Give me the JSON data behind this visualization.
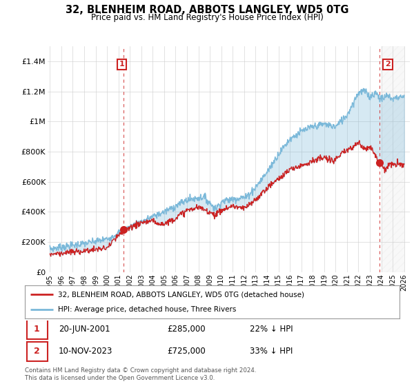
{
  "title": "32, BLENHEIM ROAD, ABBOTS LANGLEY, WD5 0TG",
  "subtitle": "Price paid vs. HM Land Registry's House Price Index (HPI)",
  "legend_line1": "32, BLENHEIM ROAD, ABBOTS LANGLEY, WD5 0TG (detached house)",
  "legend_line2": "HPI: Average price, detached house, Three Rivers",
  "table_rows": [
    {
      "num": "1",
      "date": "20-JUN-2001",
      "price": "£285,000",
      "pct": "22% ↓ HPI"
    },
    {
      "num": "2",
      "date": "10-NOV-2023",
      "price": "£725,000",
      "pct": "33% ↓ HPI"
    }
  ],
  "footer": "Contains HM Land Registry data © Crown copyright and database right 2024.\nThis data is licensed under the Open Government Licence v3.0.",
  "hpi_color": "#7ab8d9",
  "price_color": "#cc2222",
  "dashed_color": "#cc2222",
  "background_color": "#ffffff",
  "grid_color": "#cccccc",
  "ylim": [
    0,
    1500000
  ],
  "yticks": [
    0,
    200000,
    400000,
    600000,
    800000,
    1000000,
    1200000,
    1400000
  ],
  "xlim_start": 1994.8,
  "xlim_end": 2026.5,
  "xticks": [
    1995,
    1996,
    1997,
    1998,
    1999,
    2000,
    2001,
    2002,
    2003,
    2004,
    2005,
    2006,
    2007,
    2008,
    2009,
    2010,
    2011,
    2012,
    2013,
    2014,
    2015,
    2016,
    2017,
    2018,
    2019,
    2020,
    2021,
    2022,
    2023,
    2024,
    2025,
    2026
  ],
  "transaction1_x": 2001.47,
  "transaction1_y": 285000,
  "transaction2_x": 2023.86,
  "transaction2_y": 725000,
  "hpi_shade_alpha": 0.3,
  "hatch_start": 2024.0
}
